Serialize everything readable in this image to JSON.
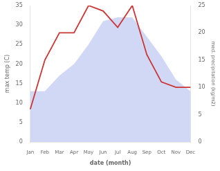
{
  "chart_data": {
    "type": "line",
    "categories": [
      "Jan",
      "Feb",
      "Mar",
      "Apr",
      "May",
      "Jun",
      "Jul",
      "Aug",
      "Sep",
      "Oct",
      "Nov",
      "Dec"
    ],
    "xlabel": "date (month)",
    "ylabel": "max temp (C)",
    "y2label": "med. precipitation (kg/m2)",
    "series": [
      {
        "name": "max temp (C)",
        "type": "area",
        "color": "#b0bef0",
        "values": [
          13,
          13,
          17,
          20,
          25,
          31,
          32,
          32,
          27,
          22,
          16,
          13
        ]
      },
      {
        "name": "med. precipitation (kg/m2)",
        "type": "line",
        "color": "#cc3333",
        "axis": "y2",
        "values": [
          6,
          15,
          20,
          20,
          25,
          24,
          21,
          25,
          16,
          11,
          10,
          10
        ]
      }
    ],
    "ylim": [
      0,
      35
    ],
    "yticks": [
      0,
      5,
      10,
      15,
      20,
      25,
      30,
      35
    ],
    "y2lim": [
      0,
      25
    ],
    "y2ticks": [
      0,
      5,
      10,
      15,
      20,
      25
    ],
    "grid": false
  }
}
